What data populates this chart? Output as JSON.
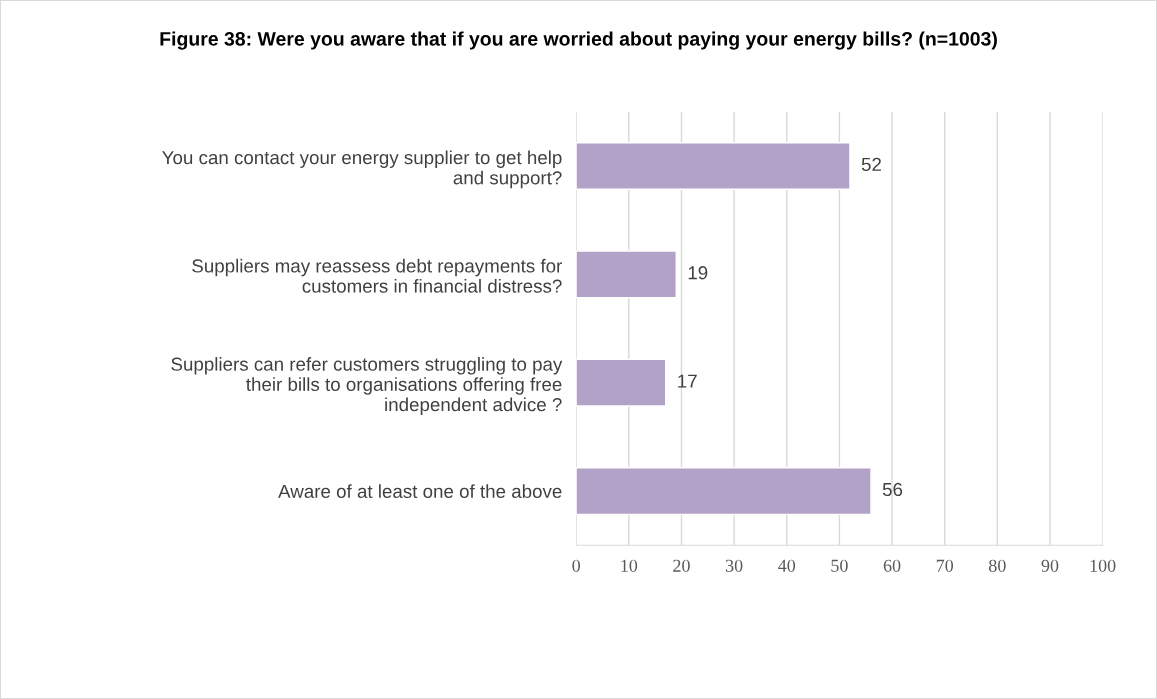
{
  "chart_data": {
    "type": "bar",
    "orientation": "horizontal",
    "title": "Figure 38: Were you aware that if you are worried about paying your energy bills? (n=1003)",
    "categories": [
      "You can contact your energy supplier to get help\nand support?",
      "Suppliers may reassess debt repayments for\ncustomers in financial distress?",
      "Suppliers can refer customers struggling to pay\ntheir bills to organisations offering free\nindependent advice ?",
      "Aware of at least one of the above"
    ],
    "values": [
      52,
      19,
      17,
      56
    ],
    "color": "#b3a2c7",
    "xlim": [
      0,
      100
    ],
    "xticks": [
      0,
      10,
      20,
      30,
      40,
      50,
      60,
      70,
      80,
      90,
      100
    ],
    "grid": "x",
    "data_labels": true,
    "legend": false
  }
}
